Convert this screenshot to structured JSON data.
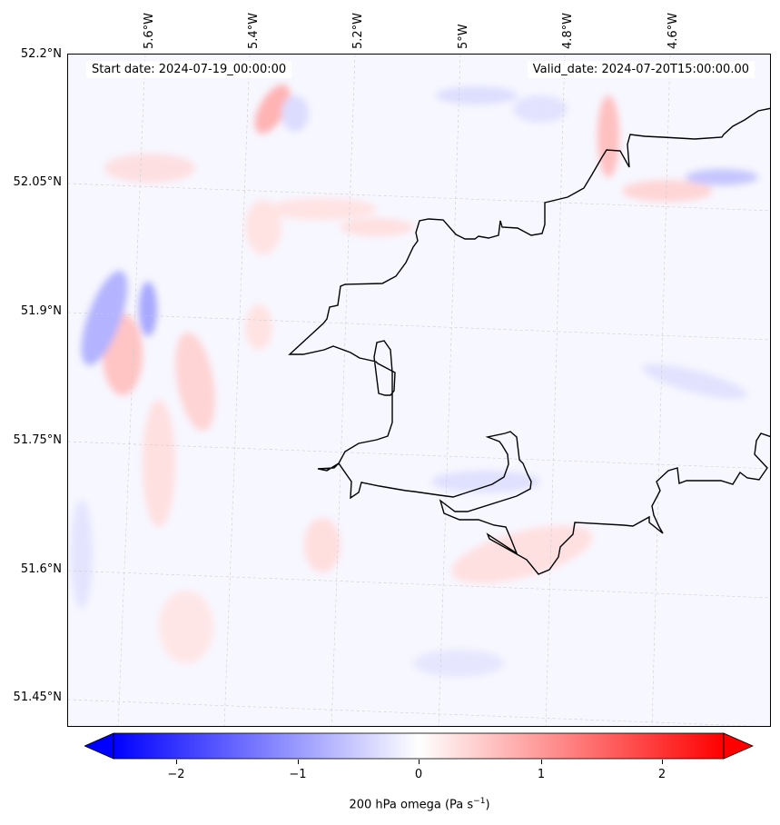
{
  "map": {
    "start_date": "Start date: 2024-07-19_00:00:00",
    "valid_date": "Valid_date: 2024-07-20T15:00:00.00",
    "lon_labels": [
      "5.6°W",
      "5.4°W",
      "5.2°W",
      "5°W",
      "4.8°W",
      "4.6°W"
    ],
    "lat_labels": [
      "52.2°N",
      "52.05°N",
      "51.9°N",
      "51.75°N",
      "51.6°N",
      "51.45°N"
    ],
    "colors": {
      "negative": "#0000ff",
      "neutral": "#ffffff",
      "positive": "#ff0000",
      "coastline": "#000000"
    }
  },
  "colorbar": {
    "ticks": [
      "−2",
      "−1",
      "0",
      "1",
      "2"
    ],
    "label": "200 hPa omega (Pa s",
    "label_sup": "−1",
    "label_end": ")",
    "range": [
      -2.5,
      2.5
    ]
  }
}
